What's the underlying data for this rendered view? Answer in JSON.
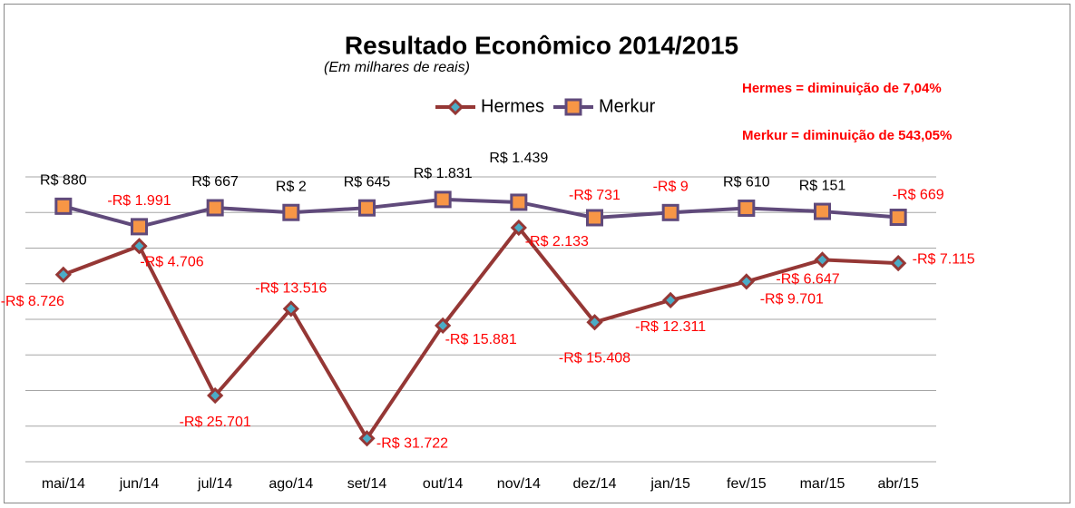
{
  "chart_data": {
    "type": "line",
    "title": "Resultado Econômico 2014/2015",
    "subtitle": "(Em milhares de reais)",
    "annotations": [
      "Hermes =  diminuição de 7,04%",
      "Merkur =  diminuição de 543,05%"
    ],
    "annotation_color": "#ff0000",
    "categories": [
      "mai/14",
      "jun/14",
      "jul/14",
      "ago/14",
      "set/14",
      "out/14",
      "nov/14",
      "dez/14",
      "jan/15",
      "fev/15",
      "mar/15",
      "abr/15"
    ],
    "series": [
      {
        "name": "Hermes",
        "color": "#953735",
        "marker_color": "#4bacc6",
        "marker": "diamond",
        "values": [
          -8726,
          -4706,
          -25701,
          -13516,
          -31722,
          -15881,
          -2133,
          -15408,
          -12311,
          -9701,
          -6647,
          -7115
        ],
        "value_labels": [
          "-R$ 8.726",
          "-R$ 4.706",
          "-R$ 25.701",
          "-R$ 13.516",
          "-R$ 31.722",
          "-R$ 15.881",
          "-R$ 2.133",
          "-R$ 15.408",
          "-R$ 12.311",
          "-R$ 9.701",
          "-R$ 6.647",
          "-R$ 7.115"
        ]
      },
      {
        "name": "Merkur",
        "color": "#604a7b",
        "marker_color": "#f79646",
        "marker": "square",
        "values": [
          880,
          -1991,
          667,
          2,
          645,
          1831,
          1439,
          -731,
          -9,
          610,
          151,
          -669
        ],
        "value_labels": [
          "R$ 880",
          "-R$ 1.991",
          "R$ 667",
          "R$ 2",
          "R$ 645",
          "R$ 1.831",
          "R$ 1.439",
          "-R$ 731",
          "-R$ 9",
          "R$ 610",
          "R$ 151",
          "-R$ 669"
        ]
      }
    ],
    "ylim": [
      -35000,
      5000
    ],
    "yticks": [
      -35000,
      -30000,
      -25000,
      -20000,
      -15000,
      -10000,
      -5000,
      0,
      5000
    ],
    "grid": true
  }
}
